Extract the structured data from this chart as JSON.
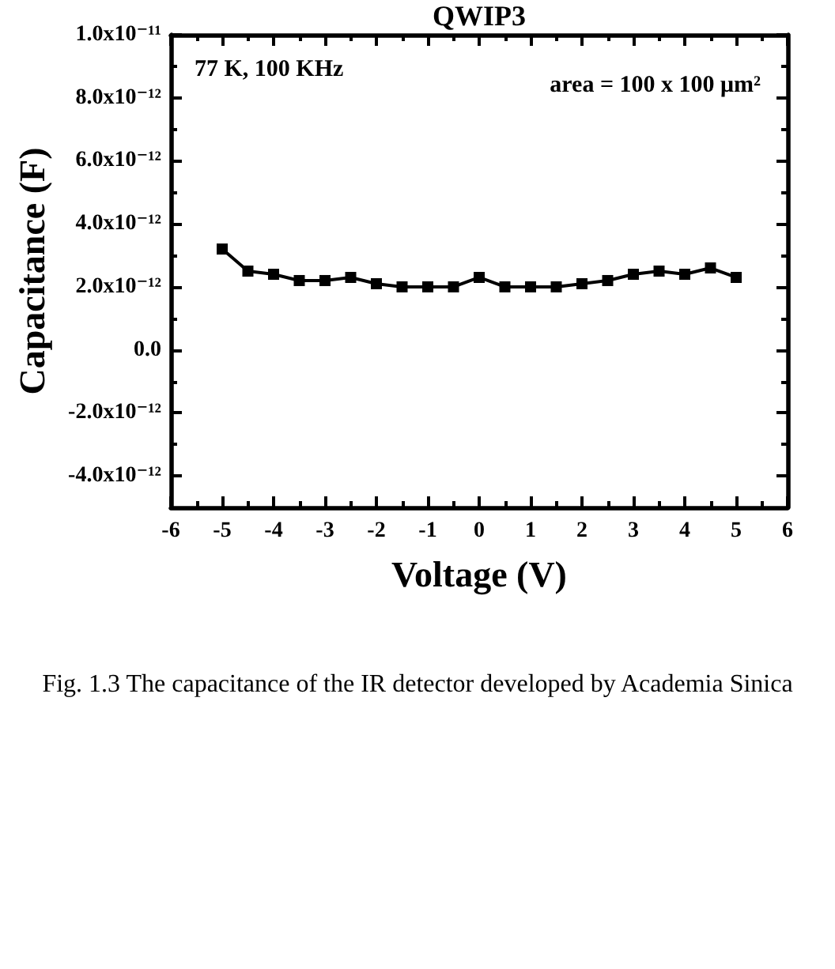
{
  "chart_data": {
    "type": "line",
    "title": "QWIP3",
    "xlabel": "Voltage (V)",
    "ylabel": "Capacitance (F)",
    "annotations": [
      "77 K, 100 KHz",
      "area = 100 x 100 μm²",
      "Fig. 1.3 The capacitance of the IR detector developed by Academia Sinica"
    ],
    "x": [
      -5,
      -4.5,
      -4,
      -3.5,
      -3,
      -2.5,
      -2,
      -1.5,
      -1,
      -0.5,
      0,
      0.5,
      1,
      1.5,
      2,
      2.5,
      3,
      3.5,
      4,
      4.5,
      5
    ],
    "values": [
      3.2e-12,
      2.5e-12,
      2.4e-12,
      2.2e-12,
      2.2e-12,
      2.3e-12,
      2.1e-12,
      2e-12,
      2e-12,
      2e-12,
      2.3e-12,
      2e-12,
      2e-12,
      2e-12,
      2.1e-12,
      2.2e-12,
      2.4e-12,
      2.5e-12,
      2.4e-12,
      2.6e-12,
      2.3e-12
    ],
    "color": "#000000",
    "marker": "square",
    "line_style": "solid",
    "xlim": [
      -6,
      6
    ],
    "xticks": [
      -6,
      {
        "value": -5.5,
        "label": null
      },
      -5,
      {
        "value": -4.5,
        "label": null
      },
      -4,
      {
        "value": -3.5,
        "label": null
      },
      -3,
      {
        "value": -2.5,
        "label": null
      },
      -2,
      {
        "value": -1.5,
        "label": null
      },
      -1,
      {
        "value": -0.5,
        "label": null
      },
      0,
      {
        "value": 0.5,
        "label": null
      },
      1,
      {
        "value": 1.5,
        "label": null
      },
      2,
      {
        "value": 2.5,
        "label": null
      },
      3,
      {
        "value": 3.5,
        "label": null
      },
      4,
      {
        "value": 4.5,
        "label": null
      },
      5,
      {
        "value": 5.5,
        "label": null
      },
      6
    ],
    "ylim": [
      -5e-12,
      1e-11
    ],
    "yticks": [
      {
        "value": -4e-12,
        "label": "-4.0x10⁻¹²"
      },
      {
        "value": -3e-12,
        "label": null
      },
      {
        "value": -2e-12,
        "label": "-2.0x10⁻¹²"
      },
      {
        "value": -1e-12,
        "label": null
      },
      {
        "value": 0,
        "label": "0.0"
      },
      {
        "value": 1e-12,
        "label": null
      },
      {
        "value": 2e-12,
        "label": "2.0x10⁻¹²"
      },
      {
        "value": 3e-12,
        "label": null
      },
      {
        "value": 4e-12,
        "label": "4.0x10⁻¹²"
      },
      {
        "value": 5e-12,
        "label": null
      },
      {
        "value": 6e-12,
        "label": "6.0x10⁻¹²"
      },
      {
        "value": 7e-12,
        "label": null
      },
      {
        "value": 8e-12,
        "label": "8.0x10⁻¹²"
      },
      {
        "value": 9e-12,
        "label": null
      },
      {
        "value": 1e-11,
        "label": "1.0x10⁻¹¹"
      }
    ]
  }
}
